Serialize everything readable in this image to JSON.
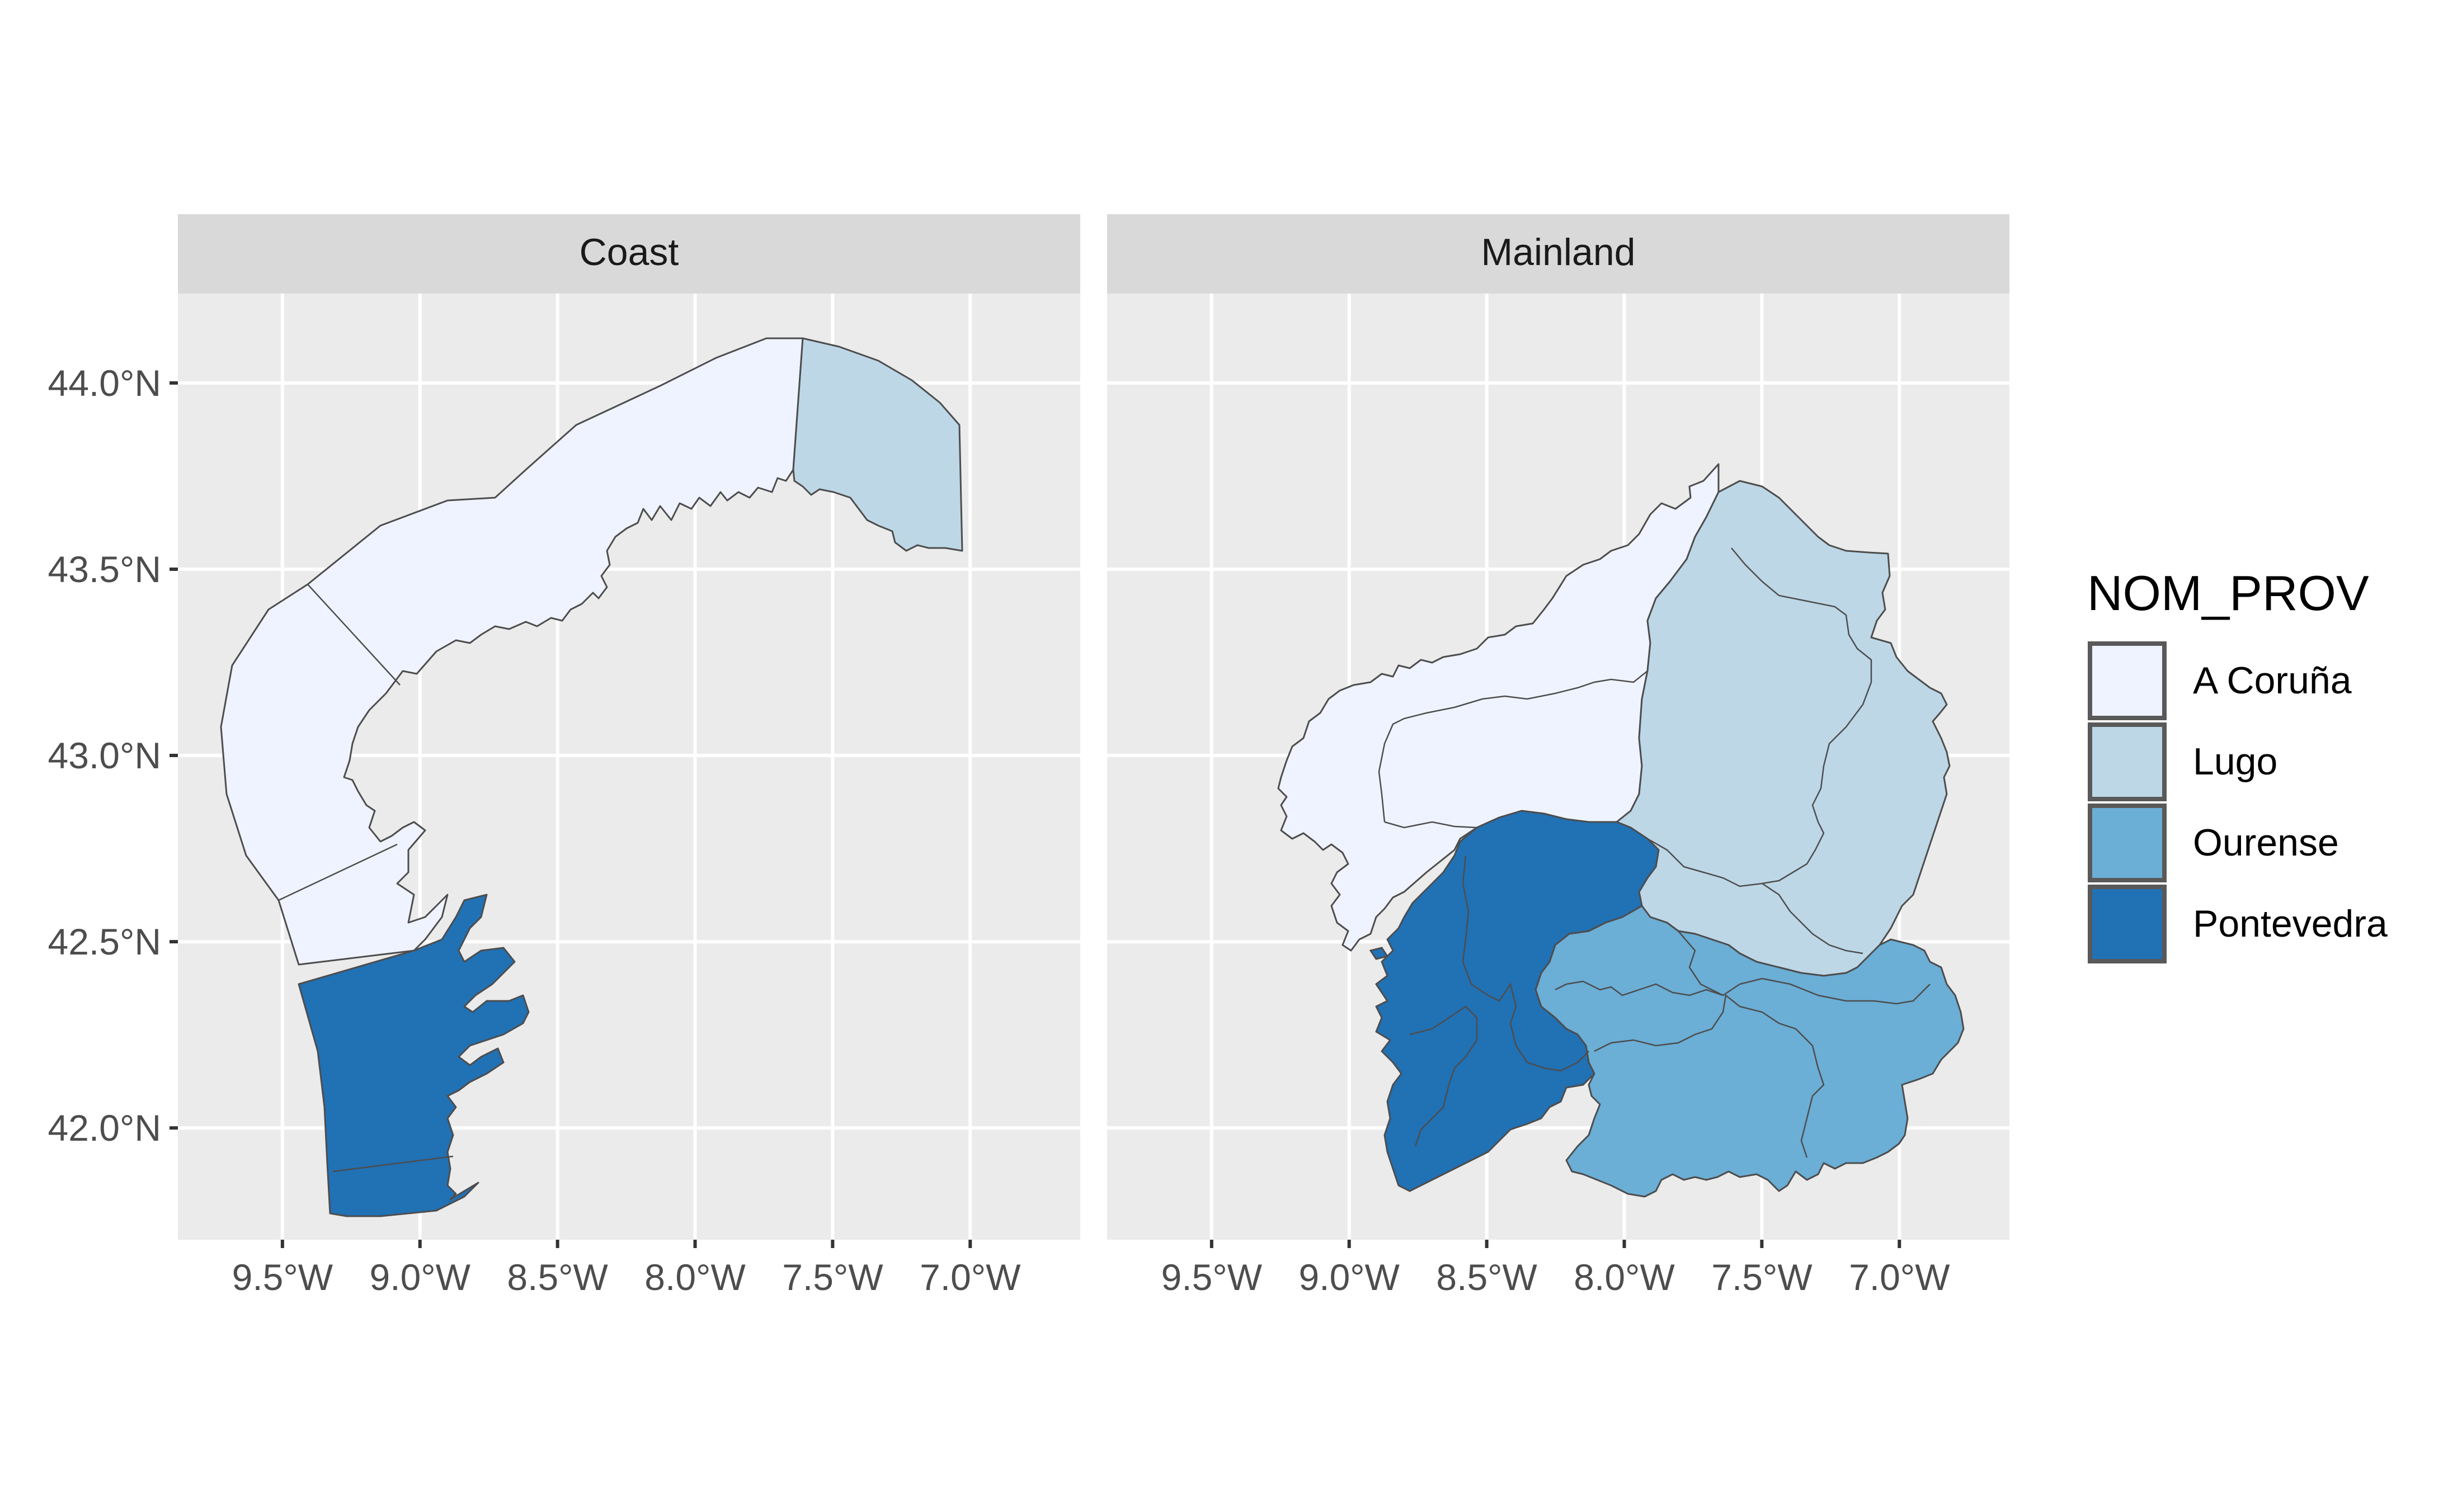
{
  "chart_data": {
    "type": "map",
    "projection": "geographic (lon/lat)",
    "panels": [
      {
        "label": "Coast"
      },
      {
        "label": "Mainland"
      }
    ],
    "x_axis": {
      "ticks": [
        -9.5,
        -9.0,
        -8.5,
        -8.0,
        -7.5,
        -7.0
      ],
      "tick_labels": [
        "9.5°W",
        "9.0°W",
        "8.5°W",
        "8.0°W",
        "7.5°W",
        "7.0°W"
      ],
      "range": [
        -9.88,
        -6.6
      ]
    },
    "y_axis": {
      "ticks": [
        42.0,
        42.5,
        43.0,
        43.5,
        44.0
      ],
      "tick_labels": [
        "42.0°N",
        "42.5°N",
        "43.0°N",
        "43.5°N",
        "44.0°N"
      ],
      "range": [
        41.7,
        44.24
      ]
    },
    "legend": {
      "title": "NOM_PROV",
      "position": "right",
      "entries": [
        {
          "label": "A Coruña",
          "color": "#eff3ff"
        },
        {
          "label": "Lugo",
          "color": "#bdd7e7"
        },
        {
          "label": "Ourense",
          "color": "#6baed6"
        },
        {
          "label": "Pontevedra",
          "color": "#2171b5"
        }
      ]
    },
    "colors": {
      "panel_background": "#ebebeb",
      "grid": "#ffffff",
      "strip_background": "#d9d9d9",
      "border": "#4d4d4d"
    }
  }
}
